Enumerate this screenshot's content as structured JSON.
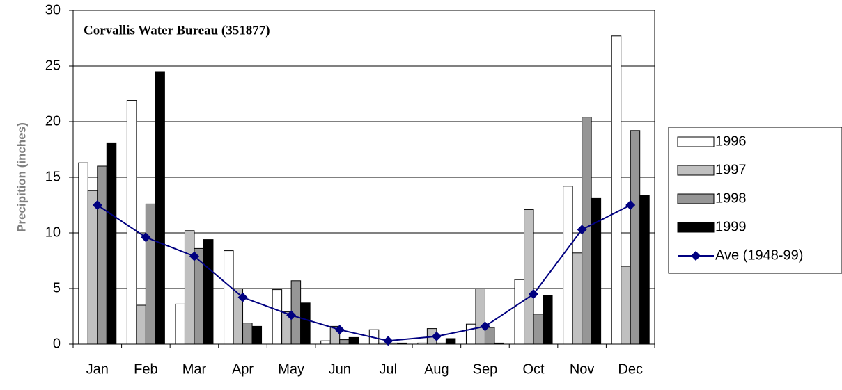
{
  "chart_data": {
    "type": "bar",
    "title": "Corvallis Water Bureau (351877)",
    "y_label": "Precipition (inches)",
    "categories": [
      "Jan",
      "Feb",
      "Mar",
      "Apr",
      "May",
      "Jun",
      "Jul",
      "Aug",
      "Sep",
      "Oct",
      "Nov",
      "Dec"
    ],
    "series": [
      {
        "name": "1996",
        "color": "#ffffff",
        "values": [
          16.3,
          21.9,
          3.6,
          8.4,
          4.9,
          0.3,
          1.3,
          0.1,
          1.8,
          5.8,
          14.2,
          27.7
        ]
      },
      {
        "name": "1997",
        "color": "#c0c0c0",
        "values": [
          13.8,
          3.5,
          10.2,
          5.0,
          2.9,
          1.6,
          0.1,
          1.4,
          5.0,
          12.1,
          8.2,
          7.0
        ]
      },
      {
        "name": "1998",
        "color": "#969696",
        "values": [
          16.0,
          12.6,
          8.6,
          1.9,
          5.7,
          0.4,
          0.1,
          0.1,
          1.5,
          2.7,
          20.4,
          19.2
        ]
      },
      {
        "name": "1999",
        "color": "#000000",
        "values": [
          18.1,
          24.5,
          9.4,
          1.6,
          3.7,
          0.6,
          0.1,
          0.5,
          0.1,
          4.4,
          13.1,
          13.4
        ]
      },
      {
        "name": "Ave (1948-99)",
        "type": "line",
        "color": "#000080",
        "values": [
          12.5,
          9.6,
          7.9,
          4.2,
          2.6,
          1.3,
          0.3,
          0.7,
          1.6,
          4.5,
          10.3,
          12.5
        ]
      }
    ],
    "ylim": [
      0,
      30
    ],
    "yticks": [
      0,
      5,
      10,
      15,
      20,
      25,
      30
    ],
    "grid": true
  }
}
